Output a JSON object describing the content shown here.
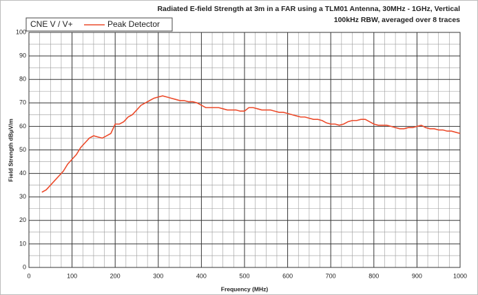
{
  "chart_data": {
    "type": "line",
    "title": "Radiated E-field Strength at 3m in a FAR using a TLM01 Antenna, 30MHz - 1GHz, Vertical",
    "subtitle": "100kHz RBW, averaged over 8 traces",
    "legend_title": "CNE V / V+",
    "xlabel": "Frequency (MHz)",
    "ylabel": "Field Strength dBμV/m",
    "x": [
      30,
      40,
      50,
      60,
      70,
      80,
      90,
      100,
      110,
      120,
      130,
      140,
      150,
      160,
      170,
      180,
      190,
      200,
      210,
      220,
      230,
      240,
      250,
      260,
      270,
      280,
      290,
      300,
      310,
      320,
      330,
      340,
      350,
      360,
      370,
      380,
      390,
      400,
      410,
      420,
      430,
      440,
      450,
      460,
      470,
      480,
      490,
      500,
      510,
      520,
      530,
      540,
      550,
      560,
      570,
      580,
      590,
      600,
      610,
      620,
      630,
      640,
      650,
      660,
      670,
      680,
      690,
      700,
      710,
      720,
      730,
      740,
      750,
      760,
      770,
      780,
      790,
      800,
      810,
      820,
      830,
      840,
      850,
      860,
      870,
      880,
      890,
      900,
      910,
      920,
      930,
      940,
      950,
      960,
      970,
      980,
      990,
      1000
    ],
    "series": [
      {
        "name": "Peak Detector",
        "color": "#ec4a2a",
        "values": [
          32,
          33,
          35,
          37,
          39,
          41,
          44,
          46,
          48,
          51,
          53,
          55,
          56,
          55.5,
          55,
          56,
          57,
          61,
          61,
          62,
          64,
          65,
          67,
          69,
          70,
          71,
          72,
          72.5,
          73,
          72.5,
          72,
          71.5,
          71,
          71,
          70.5,
          70.5,
          70,
          69,
          68,
          68,
          68,
          68,
          67.5,
          67,
          67,
          67,
          66.5,
          66.5,
          68,
          68,
          67.5,
          67,
          67,
          67,
          66.5,
          66,
          66,
          65.5,
          65,
          64.5,
          64,
          64,
          63.5,
          63,
          63,
          62.5,
          61.5,
          61,
          61,
          60.5,
          61,
          62,
          62.5,
          62.5,
          63,
          63,
          62,
          61,
          60.5,
          60.5,
          60.5,
          60,
          59.5,
          59,
          59,
          59.5,
          59.5,
          60,
          60.5,
          59.5,
          59,
          59,
          58.5,
          58.5,
          58,
          58,
          57.5,
          57
        ]
      }
    ],
    "xlim": [
      0,
      1000
    ],
    "xticks": [
      0,
      100,
      200,
      300,
      400,
      500,
      600,
      700,
      800,
      900,
      1000
    ],
    "ylim": [
      0,
      100
    ],
    "yticks": [
      0,
      10,
      20,
      30,
      40,
      50,
      60,
      70,
      80,
      90,
      100
    ],
    "xminorticks": [
      25,
      50,
      75,
      125,
      150,
      175,
      225,
      250,
      275,
      325,
      350,
      375,
      425,
      450,
      475,
      525,
      550,
      575,
      625,
      650,
      675,
      725,
      750,
      775,
      825,
      850,
      875,
      925,
      950,
      975
    ],
    "yminorticks": [
      5,
      15,
      25,
      35,
      45,
      55,
      65,
      75,
      85,
      95
    ],
    "grid": true
  }
}
